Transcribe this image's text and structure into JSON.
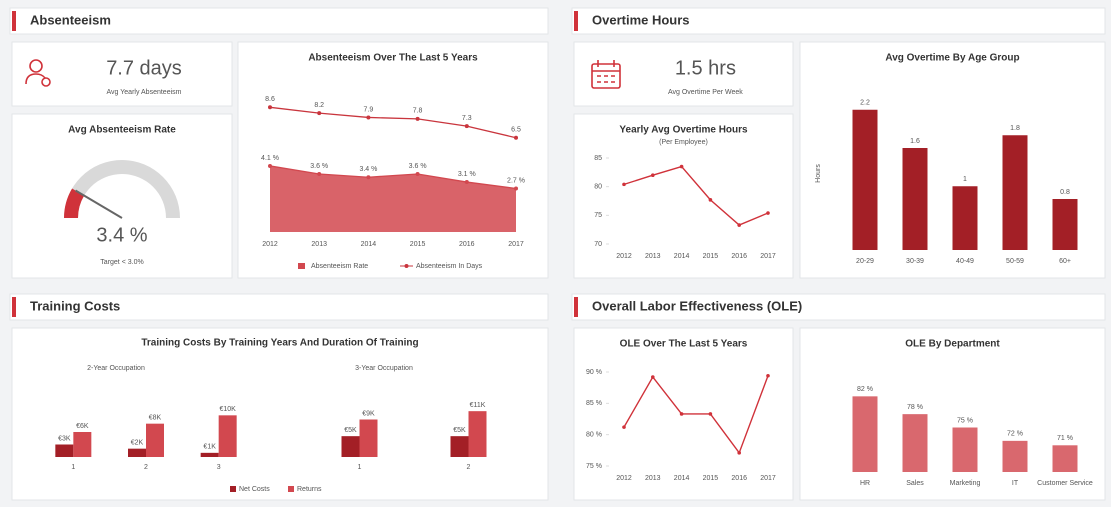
{
  "sections": [
    "Absenteeism",
    "Overtime Hours",
    "Training Costs",
    "Overall Labor Effectiveness (OLE)"
  ],
  "kpis": [
    {
      "value": "7.7 days",
      "label": "Avg Yearly Absenteeism"
    },
    {
      "value": "1.5 hrs",
      "label": "Avg Overtime Per Week"
    }
  ],
  "chart_data": [
    {
      "type": "gauge",
      "title": "Avg Absenteeism Rate",
      "value": 3.4,
      "value_label": "3.4 %",
      "ylim": [
        0,
        20
      ],
      "note": "Target < 3.0%",
      "color": "#d0323a"
    },
    {
      "type": "combo",
      "title": "Absenteeism Over The Last 5 Years",
      "categories": [
        "2012",
        "2013",
        "2014",
        "2015",
        "2016",
        "2017"
      ],
      "series": [
        {
          "name": "Absenteeism Rate",
          "type": "area",
          "color": "#d2484f",
          "values": [
            4.1,
            3.6,
            3.4,
            3.6,
            3.1,
            2.7
          ],
          "value_labels": [
            "4.1 %",
            "3.6 %",
            "3.4 %",
            "3.6 %",
            "3.1 %",
            "2.7 %"
          ]
        },
        {
          "name": "Absenteeism In Days",
          "type": "line",
          "axis": "y2",
          "color": "#c9353d",
          "values": [
            8.6,
            8.2,
            7.9,
            7.8,
            7.3,
            6.5
          ]
        }
      ],
      "ylim": [
        0,
        9
      ],
      "y2lim": [
        0,
        10
      ]
    },
    {
      "type": "line",
      "title": "Yearly Avg Overtime Hours",
      "subtitle": "(Per Employee)",
      "categories": [
        "2012",
        "2013",
        "2014",
        "2015",
        "2016",
        "2017"
      ],
      "values": [
        80.4,
        82,
        83.5,
        77.7,
        73.3,
        75.4
      ],
      "color": "#d0323a",
      "ylim": [
        70,
        85
      ],
      "yticks": [
        70,
        75,
        80,
        85
      ]
    },
    {
      "type": "bar",
      "title": "Avg Overtime By Age Group",
      "y_label": "Hours",
      "categories": [
        "20-29",
        "30-39",
        "40-49",
        "50-59",
        "60+"
      ],
      "values": [
        2.2,
        1.6,
        1.0,
        1.8,
        0.8
      ],
      "color": "#a31f26",
      "ylim": [
        0,
        2.4
      ]
    },
    {
      "type": "grouped_bar",
      "title": "Training Costs By Training Years And Duration Of Training",
      "series": [
        {
          "name": "Net Costs",
          "color": "#a31f26"
        },
        {
          "name": "Returns",
          "color": "#d2484f"
        }
      ],
      "groups": [
        {
          "subtitle": "2-Year Occupation",
          "categories": [
            "1",
            "2",
            "3"
          ],
          "values": [
            [
              3000,
              6000
            ],
            [
              2000,
              8000
            ],
            [
              1000,
              10000
            ]
          ],
          "value_labels": [
            [
              "€3K",
              "€6K"
            ],
            [
              "€2K",
              "€8K"
            ],
            [
              "€1K",
              "€10K"
            ]
          ]
        },
        {
          "subtitle": "3-Year Occupation",
          "categories": [
            "1",
            "2"
          ],
          "values": [
            [
              5000,
              9000
            ],
            [
              5000,
              11000
            ]
          ],
          "value_labels": [
            [
              "€5K",
              "€9K"
            ],
            [
              "€5K",
              "€11K"
            ]
          ]
        }
      ],
      "ylim": [
        0,
        12000
      ]
    },
    {
      "type": "line",
      "title": "OLE Over The Last 5 Years",
      "categories": [
        "2012",
        "2013",
        "2014",
        "2015",
        "2016",
        "2017"
      ],
      "values": [
        81.2,
        89.2,
        83.3,
        83.3,
        77.1,
        89.4
      ],
      "color": "#d0323a",
      "ylim": [
        75,
        90
      ],
      "yticks": [
        {
          "value": 75,
          "label": "75 %"
        },
        {
          "value": 80,
          "label": "80 %"
        },
        {
          "value": 85,
          "label": "85 %"
        },
        {
          "value": 90,
          "label": "90 %"
        }
      ]
    },
    {
      "type": "bar",
      "title": "OLE By Department",
      "categories": [
        "HR",
        "Sales",
        "Marketing",
        "IT",
        "Customer Service"
      ],
      "values": [
        82,
        78,
        75,
        72,
        71
      ],
      "value_labels": [
        "82 %",
        "78 %",
        "75 %",
        "72 %",
        "71 %"
      ],
      "color": "#d9686e",
      "ylim": [
        65,
        85
      ]
    }
  ]
}
